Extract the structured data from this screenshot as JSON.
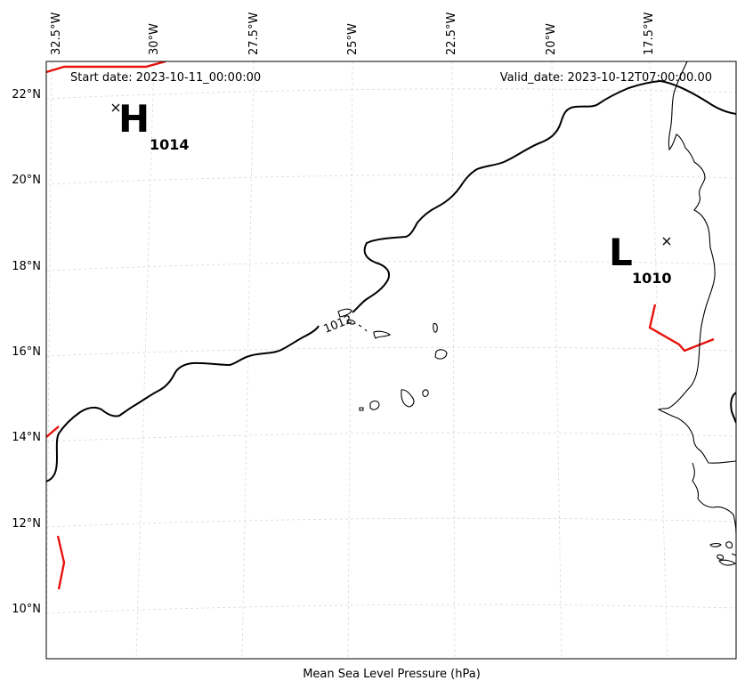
{
  "header": {
    "start_date": "Start date: 2023-10-11_00:00:00",
    "valid_date": "Valid_date: 2023-10-12T07:00:00.00"
  },
  "footer_label": "Mean Sea Level Pressure (hPa)",
  "longitude_ticks": [
    "32.5°W",
    "30°W",
    "27.5°W",
    "25°W",
    "22.5°W",
    "20°W",
    "17.5°W"
  ],
  "latitude_ticks": [
    "22°N",
    "20°N",
    "18°N",
    "16°N",
    "14°N",
    "12°N",
    "10°N"
  ],
  "isobar_label": "1012",
  "pressure_centers": [
    {
      "symbol": "H",
      "value": "1014"
    },
    {
      "symbol": "L",
      "value": "1010"
    }
  ],
  "colors": {
    "isobar": "#000000",
    "front": "#e8120c",
    "grid": "#d9d9d9"
  }
}
